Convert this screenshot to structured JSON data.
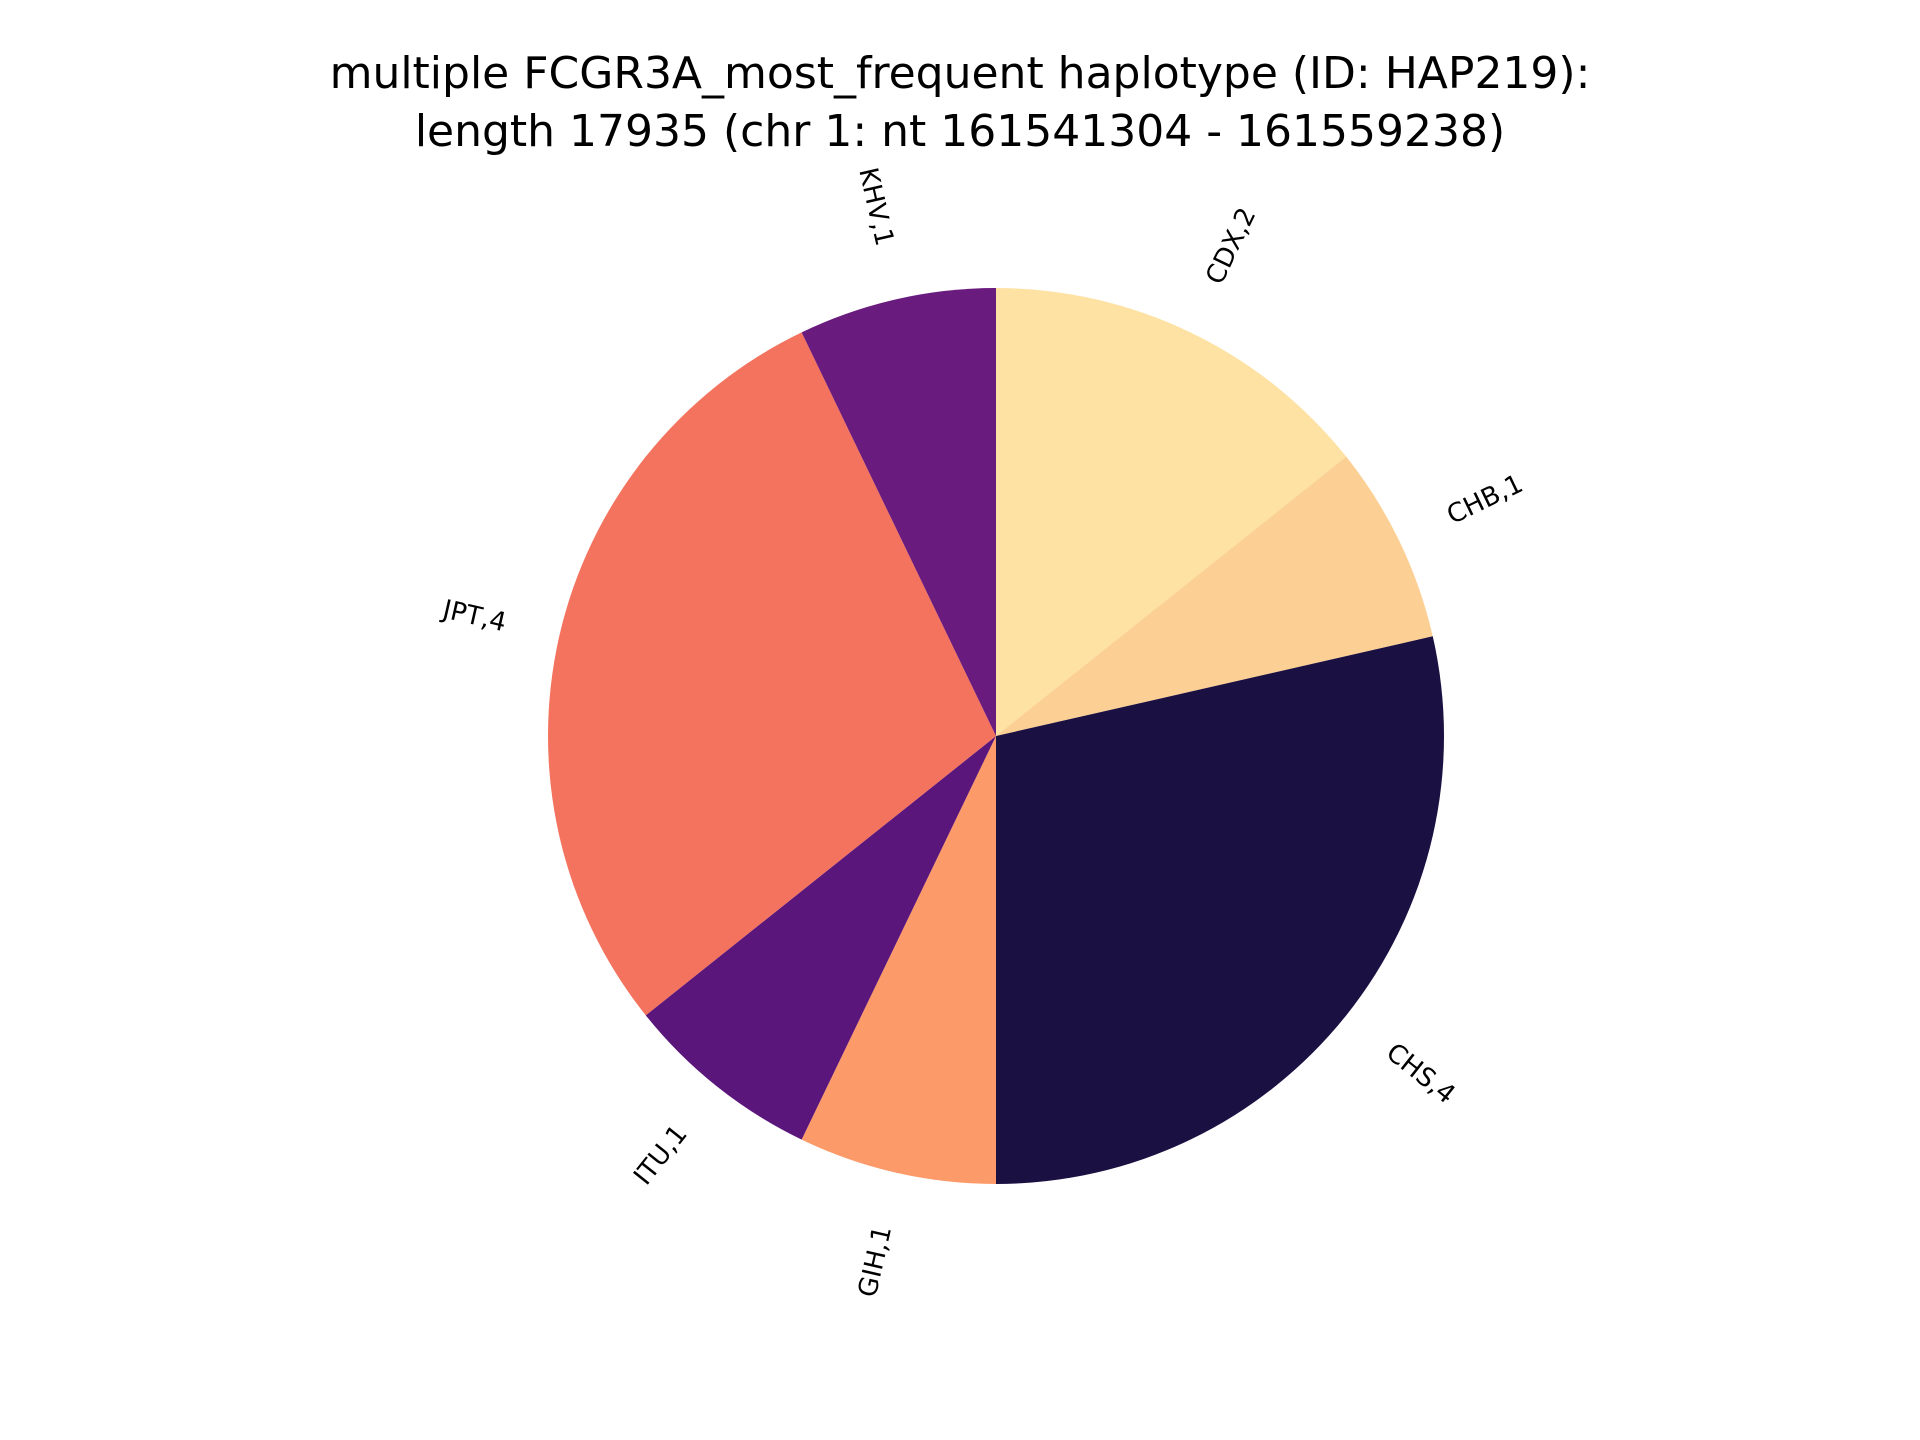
{
  "chart_data": {
    "type": "pie",
    "title_lines": [
      "multiple FCGR3A_most_frequent haplotype (ID: HAP219):",
      "length 17935 (chr 1: nt 161541304 - 161559238)"
    ],
    "slices": [
      {
        "name": "CDX",
        "value": 2,
        "label": "CDX,2",
        "color": "#fde2a3"
      },
      {
        "name": "CHB",
        "value": 1,
        "label": "CHB,1",
        "color": "#fcd094"
      },
      {
        "name": "CHS",
        "value": 4,
        "label": "CHS,4",
        "color": "#1b1042"
      },
      {
        "name": "GIH",
        "value": 1,
        "label": "GIH,1",
        "color": "#fd9a6a"
      },
      {
        "name": "ITU",
        "value": 1,
        "label": "ITU,1",
        "color": "#5a167b"
      },
      {
        "name": "JPT",
        "value": 4,
        "label": "JPT,4",
        "color": "#f4735e"
      },
      {
        "name": "KHV",
        "value": 1,
        "label": "KHV,1",
        "color": "#6a1b7e"
      }
    ],
    "start_angle": "top",
    "direction": "clockwise"
  }
}
